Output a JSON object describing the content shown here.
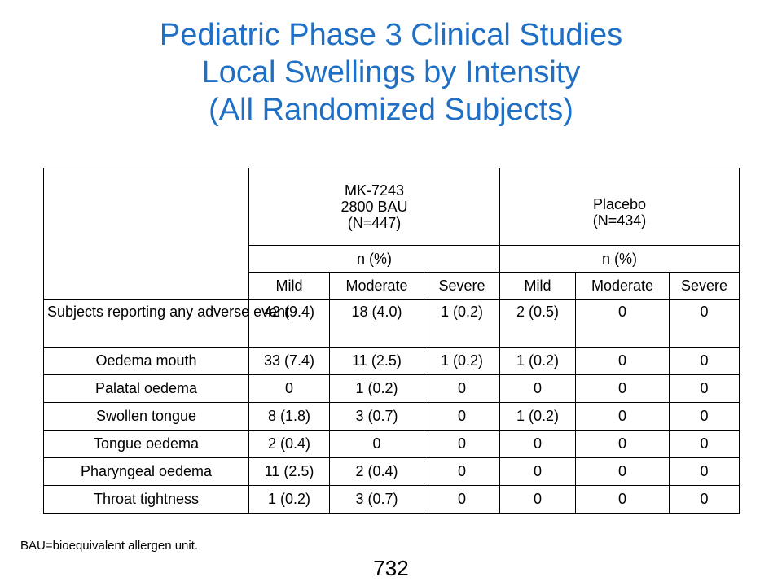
{
  "title": {
    "line1": "Pediatric Phase 3 Clinical Studies",
    "line2": "Local Swellings by Intensity",
    "line3": "(All Randomized Subjects)"
  },
  "table": {
    "groups": [
      {
        "line1": "MK-7243",
        "line2": "2800 BAU",
        "line3": "(N=447)"
      },
      {
        "line1": "Placebo",
        "line2": "(N=434)"
      }
    ],
    "unit_label": "n (%)",
    "severity": [
      "Mild",
      "Moderate",
      "Severe",
      "Mild",
      "Moderate",
      "Severe"
    ],
    "rows": [
      {
        "label": "Subjects reporting any adverse event",
        "values": [
          "42 (9.4)",
          "18 (4.0)",
          "1 (0.2)",
          "2 (0.5)",
          "0",
          "0"
        ]
      },
      {
        "label": "Oedema mouth",
        "values": [
          "33 (7.4)",
          "11 (2.5)",
          "1 (0.2)",
          "1 (0.2)",
          "0",
          "0"
        ]
      },
      {
        "label": "Palatal oedema",
        "values": [
          "0",
          "1 (0.2)",
          "0",
          "0",
          "0",
          "0"
        ]
      },
      {
        "label": "Swollen tongue",
        "values": [
          "8 (1.8)",
          "3 (0.7)",
          "0",
          "1 (0.2)",
          "0",
          "0"
        ]
      },
      {
        "label": "Tongue oedema",
        "values": [
          "2 (0.4)",
          "0",
          "0",
          "0",
          "0",
          "0"
        ]
      },
      {
        "label": "Pharyngeal oedema",
        "values": [
          "11 (2.5)",
          "2 (0.4)",
          "0",
          "0",
          "0",
          "0"
        ]
      },
      {
        "label": "Throat tightness",
        "values": [
          "1 (0.2)",
          "3 (0.7)",
          "0",
          "0",
          "0",
          "0"
        ]
      }
    ]
  },
  "footnote": "BAU=bioequivalent allergen unit.",
  "page_number": "732",
  "colors": {
    "title": "#1f6fc5",
    "header_rule": "#2a6fc4"
  }
}
